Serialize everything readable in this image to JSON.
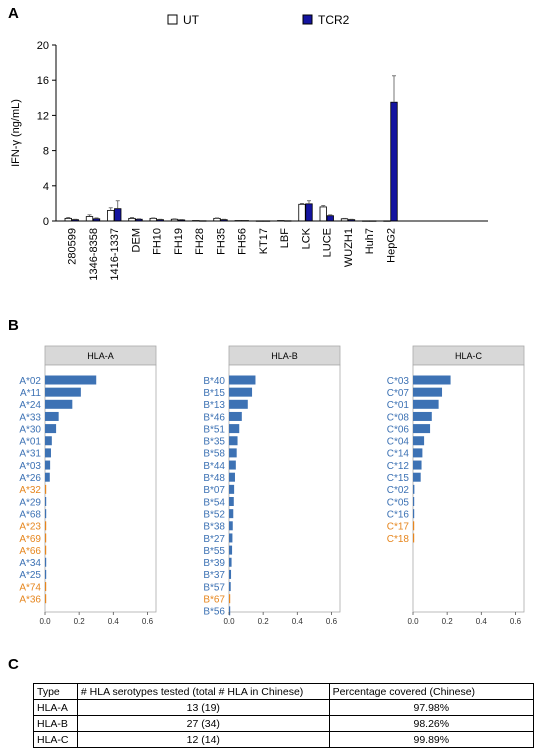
{
  "panels": {
    "a": "A",
    "b": "B",
    "c": "C"
  },
  "colors": {
    "ut": "#ffffff",
    "tcr2": "#1414a0",
    "hla_blue": "#3d72b4",
    "hla_orange": "#e6861e",
    "strip": "#d8d8d8"
  },
  "chart_data": [
    {
      "type": "bar",
      "title": "",
      "xlabel": "",
      "ylabel": "IFN-γ (ng/mL)",
      "ylim": [
        0,
        20
      ],
      "yticks": [
        0,
        4,
        8,
        12,
        16,
        20
      ],
      "legend_position": "top",
      "categories": [
        "280599",
        "1346-8358",
        "1416-1337",
        "DEM",
        "FH10",
        "FH19",
        "FH28",
        "FH35",
        "FH56",
        "KT17",
        "LBF",
        "LCK",
        "LUCE",
        "WUZH1",
        "Huh7",
        "HepG2"
      ],
      "series": [
        {
          "name": "UT",
          "values": [
            0.3,
            0.5,
            1.2,
            0.3,
            0.3,
            0.2,
            0.05,
            0.3,
            0.05,
            0.02,
            0.05,
            1.9,
            1.6,
            0.25,
            0.02,
            0.02
          ],
          "errors": [
            0.1,
            0.2,
            0.3,
            0.1,
            0.05,
            0.05,
            0.02,
            0.05,
            0.02,
            0.01,
            0.02,
            0.1,
            0.15,
            0.05,
            0.01,
            0.01
          ]
        },
        {
          "name": "TCR2",
          "values": [
            0.15,
            0.25,
            1.4,
            0.2,
            0.15,
            0.12,
            0.03,
            0.15,
            0.05,
            0.02,
            0.03,
            1.95,
            0.6,
            0.15,
            0.02,
            13.5
          ],
          "errors": [
            0.05,
            0.1,
            0.9,
            0.05,
            0.05,
            0.05,
            0.01,
            0.05,
            0.02,
            0.01,
            0.01,
            0.35,
            0.1,
            0.05,
            0.01,
            3.0
          ]
        }
      ]
    },
    {
      "type": "bar",
      "orientation": "horizontal",
      "title": "HLA-A",
      "xlim": [
        0,
        0.65
      ],
      "xticks": [
        "0.0",
        "0.2",
        "0.4",
        "0.6"
      ],
      "categories": [
        "A*02",
        "A*11",
        "A*24",
        "A*33",
        "A*30",
        "A*01",
        "A*31",
        "A*03",
        "A*26",
        "A*32",
        "A*29",
        "A*68",
        "A*23",
        "A*69",
        "A*66",
        "A*34",
        "A*25",
        "A*74",
        "A*36"
      ],
      "values": [
        0.3,
        0.21,
        0.16,
        0.08,
        0.065,
        0.04,
        0.035,
        0.03,
        0.028,
        0.006,
        0.004,
        0.004,
        0.003,
        0.002,
        0.002,
        0.002,
        0.002,
        0.001,
        0.001
      ],
      "tested": [
        true,
        true,
        true,
        true,
        true,
        true,
        true,
        true,
        true,
        false,
        true,
        true,
        false,
        false,
        false,
        true,
        true,
        false,
        false
      ]
    },
    {
      "type": "bar",
      "orientation": "horizontal",
      "title": "HLA-B",
      "xlim": [
        0,
        0.65
      ],
      "xticks": [
        "0.0",
        "0.2",
        "0.4",
        "0.6"
      ],
      "categories": [
        "B*40",
        "B*15",
        "B*13",
        "B*46",
        "B*51",
        "B*35",
        "B*58",
        "B*44",
        "B*48",
        "B*07",
        "B*54",
        "B*52",
        "B*38",
        "B*27",
        "B*55",
        "B*39",
        "B*37",
        "B*57",
        "B*67",
        "B*56"
      ],
      "values": [
        0.155,
        0.135,
        0.11,
        0.075,
        0.06,
        0.05,
        0.045,
        0.04,
        0.035,
        0.03,
        0.028,
        0.025,
        0.022,
        0.02,
        0.018,
        0.015,
        0.012,
        0.01,
        0.005,
        0.004
      ],
      "tested": [
        true,
        true,
        true,
        true,
        true,
        true,
        true,
        true,
        true,
        true,
        true,
        true,
        true,
        true,
        true,
        true,
        true,
        true,
        false,
        true
      ]
    },
    {
      "type": "bar",
      "orientation": "horizontal",
      "title": "HLA-C",
      "xlim": [
        0,
        0.65
      ],
      "xticks": [
        "0.0",
        "0.2",
        "0.4",
        "0.6"
      ],
      "categories": [
        "C*03",
        "C*07",
        "C*01",
        "C*08",
        "C*06",
        "C*04",
        "C*14",
        "C*12",
        "C*15",
        "C*02",
        "C*05",
        "C*16",
        "C*17",
        "C*18"
      ],
      "values": [
        0.22,
        0.17,
        0.15,
        0.11,
        0.1,
        0.065,
        0.055,
        0.05,
        0.045,
        0.008,
        0.006,
        0.004,
        0.002,
        0.001
      ],
      "tested": [
        true,
        true,
        true,
        true,
        true,
        true,
        true,
        true,
        true,
        true,
        true,
        true,
        false,
        false
      ]
    }
  ],
  "table": {
    "headers": [
      "Type",
      "# HLA serotypes tested (total #  HLA in Chinese)",
      "Percentage covered (Chinese)"
    ],
    "rows": [
      [
        "HLA-A",
        "13 (19)",
        "97.98%"
      ],
      [
        "HLA-B",
        "27 (34)",
        "98.26%"
      ],
      [
        "HLA-C",
        "12 (14)",
        "99.89%"
      ]
    ]
  }
}
